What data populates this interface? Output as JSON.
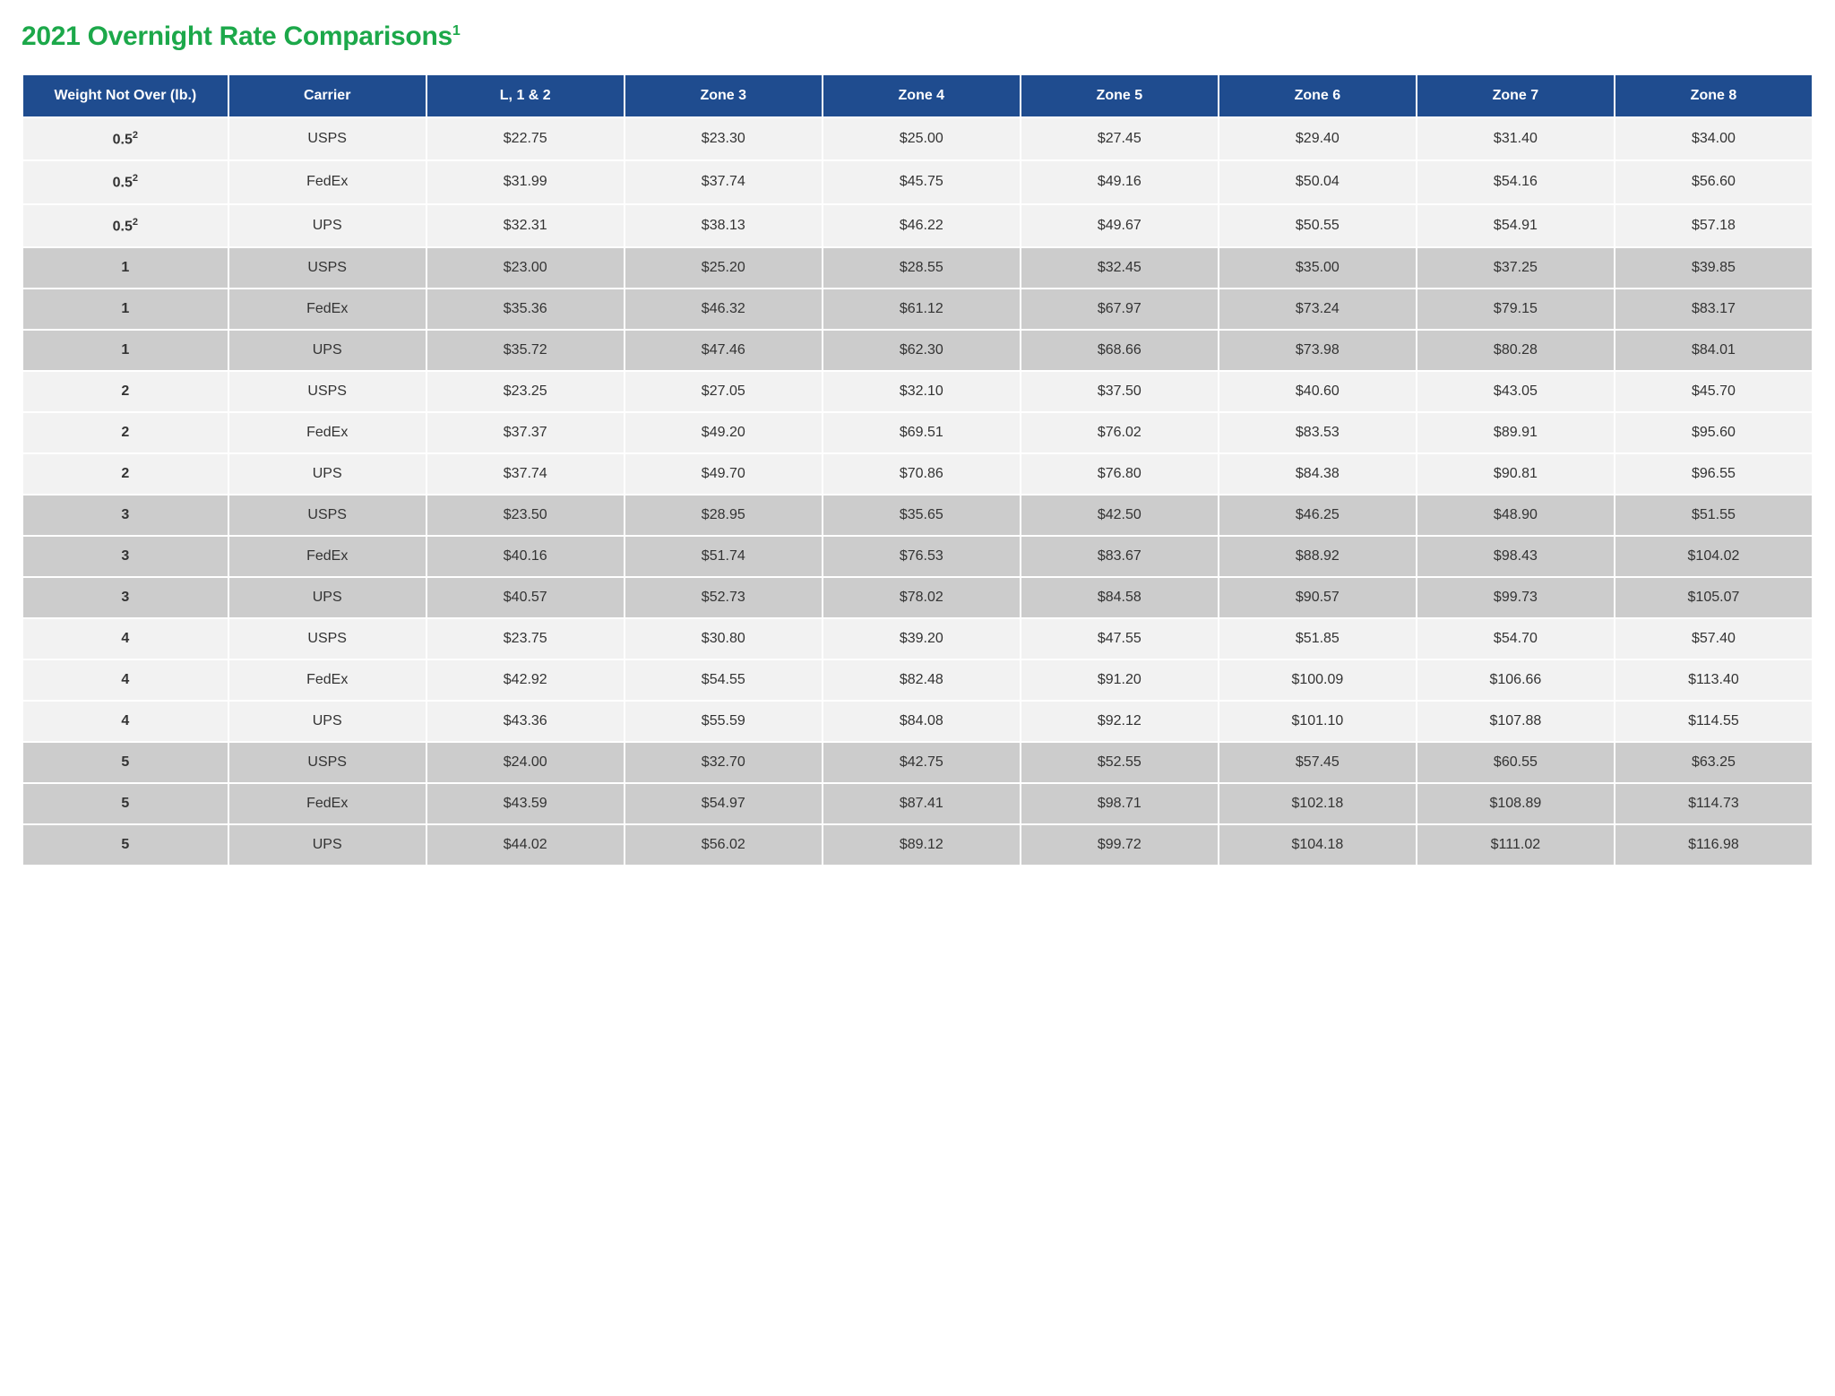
{
  "title_main": "2021 Overnight Rate Comparisons",
  "title_sup": "1",
  "colors": {
    "title": "#1ca84a",
    "header_bg": "#1f4c8f",
    "header_text": "#ffffff",
    "band_light": "#f2f2f2",
    "band_dark": "#cccccc",
    "text": "#333333",
    "page_bg": "#ffffff"
  },
  "table": {
    "type": "table",
    "columns": [
      "Weight Not Over (lb.)",
      "Carrier",
      "L, 1 & 2",
      "Zone 3",
      "Zone 4",
      "Zone 5",
      "Zone 6",
      "Zone 7",
      "Zone 8"
    ],
    "rows": [
      {
        "band": "light",
        "weight": "0.5",
        "weight_sup": "2",
        "carrier": "USPS",
        "v": [
          "$22.75",
          "$23.30",
          "$25.00",
          "$27.45",
          "$29.40",
          "$31.40",
          "$34.00"
        ]
      },
      {
        "band": "light",
        "weight": "0.5",
        "weight_sup": "2",
        "carrier": "FedEx",
        "v": [
          "$31.99",
          "$37.74",
          "$45.75",
          "$49.16",
          "$50.04",
          "$54.16",
          "$56.60"
        ]
      },
      {
        "band": "light",
        "weight": "0.5",
        "weight_sup": "2",
        "carrier": "UPS",
        "v": [
          "$32.31",
          "$38.13",
          "$46.22",
          "$49.67",
          "$50.55",
          "$54.91",
          "$57.18"
        ]
      },
      {
        "band": "dark",
        "weight": "1",
        "weight_sup": "",
        "carrier": "USPS",
        "v": [
          "$23.00",
          "$25.20",
          "$28.55",
          "$32.45",
          "$35.00",
          "$37.25",
          "$39.85"
        ]
      },
      {
        "band": "dark",
        "weight": "1",
        "weight_sup": "",
        "carrier": "FedEx",
        "v": [
          "$35.36",
          "$46.32",
          "$61.12",
          "$67.97",
          "$73.24",
          "$79.15",
          "$83.17"
        ]
      },
      {
        "band": "dark",
        "weight": "1",
        "weight_sup": "",
        "carrier": "UPS",
        "v": [
          "$35.72",
          "$47.46",
          "$62.30",
          "$68.66",
          "$73.98",
          "$80.28",
          "$84.01"
        ]
      },
      {
        "band": "light",
        "weight": "2",
        "weight_sup": "",
        "carrier": "USPS",
        "v": [
          "$23.25",
          "$27.05",
          "$32.10",
          "$37.50",
          "$40.60",
          "$43.05",
          "$45.70"
        ]
      },
      {
        "band": "light",
        "weight": "2",
        "weight_sup": "",
        "carrier": "FedEx",
        "v": [
          "$37.37",
          "$49.20",
          "$69.51",
          "$76.02",
          "$83.53",
          "$89.91",
          "$95.60"
        ]
      },
      {
        "band": "light",
        "weight": "2",
        "weight_sup": "",
        "carrier": "UPS",
        "v": [
          "$37.74",
          "$49.70",
          "$70.86",
          "$76.80",
          "$84.38",
          "$90.81",
          "$96.55"
        ]
      },
      {
        "band": "dark",
        "weight": "3",
        "weight_sup": "",
        "carrier": "USPS",
        "v": [
          "$23.50",
          "$28.95",
          "$35.65",
          "$42.50",
          "$46.25",
          "$48.90",
          "$51.55"
        ]
      },
      {
        "band": "dark",
        "weight": "3",
        "weight_sup": "",
        "carrier": "FedEx",
        "v": [
          "$40.16",
          "$51.74",
          "$76.53",
          "$83.67",
          "$88.92",
          "$98.43",
          "$104.02"
        ]
      },
      {
        "band": "dark",
        "weight": "3",
        "weight_sup": "",
        "carrier": "UPS",
        "v": [
          "$40.57",
          "$52.73",
          "$78.02",
          "$84.58",
          "$90.57",
          "$99.73",
          "$105.07"
        ]
      },
      {
        "band": "light",
        "weight": "4",
        "weight_sup": "",
        "carrier": "USPS",
        "v": [
          "$23.75",
          "$30.80",
          "$39.20",
          "$47.55",
          "$51.85",
          "$54.70",
          "$57.40"
        ]
      },
      {
        "band": "light",
        "weight": "4",
        "weight_sup": "",
        "carrier": "FedEx",
        "v": [
          "$42.92",
          "$54.55",
          "$82.48",
          "$91.20",
          "$100.09",
          "$106.66",
          "$113.40"
        ]
      },
      {
        "band": "light",
        "weight": "4",
        "weight_sup": "",
        "carrier": "UPS",
        "v": [
          "$43.36",
          "$55.59",
          "$84.08",
          "$92.12",
          "$101.10",
          "$107.88",
          "$114.55"
        ]
      },
      {
        "band": "dark",
        "weight": "5",
        "weight_sup": "",
        "carrier": "USPS",
        "v": [
          "$24.00",
          "$32.70",
          "$42.75",
          "$52.55",
          "$57.45",
          "$60.55",
          "$63.25"
        ]
      },
      {
        "band": "dark",
        "weight": "5",
        "weight_sup": "",
        "carrier": "FedEx",
        "v": [
          "$43.59",
          "$54.97",
          "$87.41",
          "$98.71",
          "$102.18",
          "$108.89",
          "$114.73"
        ]
      },
      {
        "band": "dark",
        "weight": "5",
        "weight_sup": "",
        "carrier": "UPS",
        "v": [
          "$44.02",
          "$56.02",
          "$89.12",
          "$99.72",
          "$104.18",
          "$111.02",
          "$116.98"
        ]
      }
    ]
  }
}
